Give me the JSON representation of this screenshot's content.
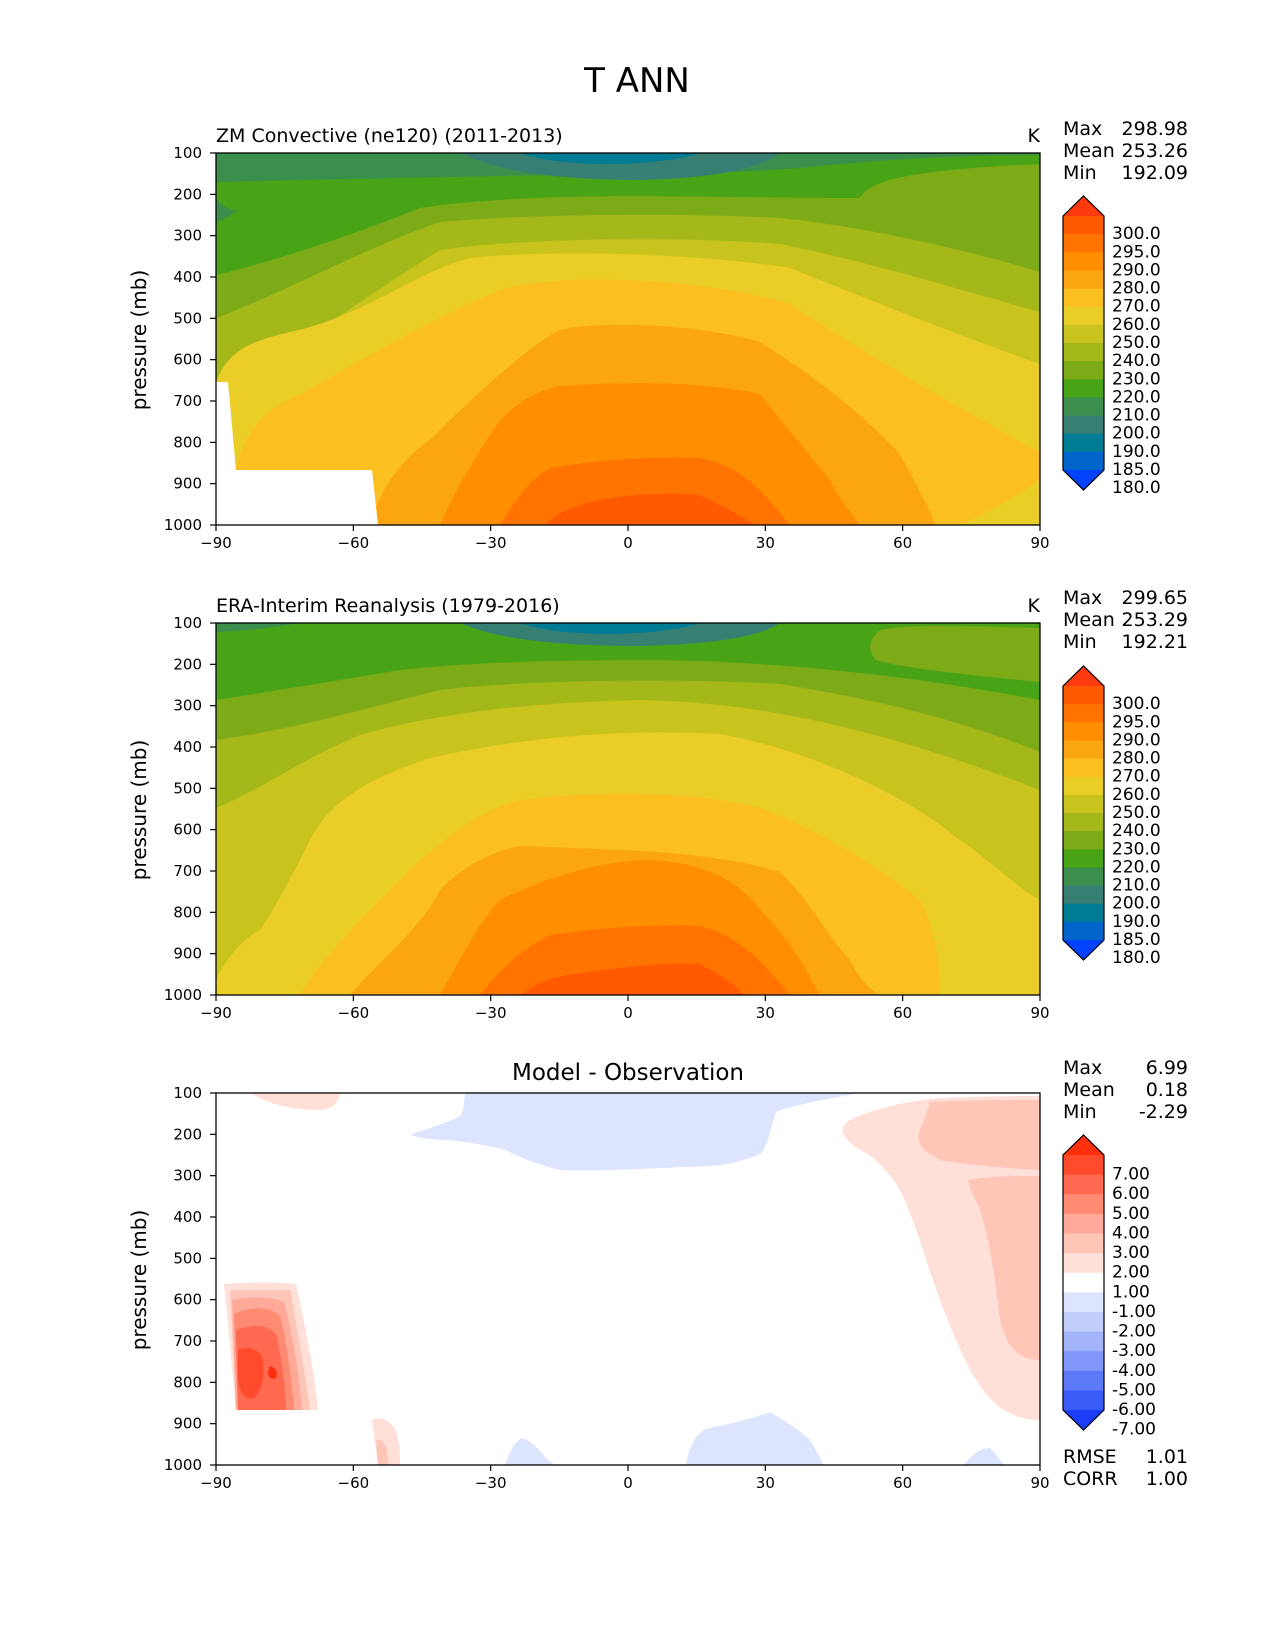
{
  "figure": {
    "suptitle": "T ANN"
  },
  "chart_data": [
    {
      "type": "heatmap",
      "title": "ZM Convective (ne120) (2011-2013)",
      "units": "K",
      "ylabel": "pressure (mb)",
      "xlim": [
        -90,
        90
      ],
      "ylim": [
        1000,
        100
      ],
      "xticks": [
        "−90",
        "−60",
        "−30",
        "0",
        "30",
        "60",
        "90"
      ],
      "yticks": [
        "100",
        "200",
        "300",
        "400",
        "500",
        "600",
        "700",
        "800",
        "900",
        "1000"
      ],
      "stats": {
        "max_label": "Max",
        "max": "298.98",
        "mean_label": "Mean",
        "mean": "253.26",
        "min_label": "Min",
        "min": "192.09"
      },
      "colorbar": {
        "labels": [
          "300.0",
          "295.0",
          "290.0",
          "280.0",
          "270.0",
          "260.0",
          "250.0",
          "240.0",
          "230.0",
          "220.0",
          "210.0",
          "200.0",
          "190.0",
          "185.0",
          "180.0"
        ],
        "colors": [
          "#ff3a0e",
          "#ff5a00",
          "#ff7300",
          "#ff8e00",
          "#fba611",
          "#fbbf1f",
          "#ebcd27",
          "#c8c41d",
          "#a4b81a",
          "#7dab17",
          "#49a316",
          "#3c8e4c",
          "#377f73",
          "#007d94",
          "#0066cc",
          "#0042ff"
        ]
      }
    },
    {
      "type": "heatmap",
      "title": "ERA-Interim Reanalysis (1979-2016)",
      "units": "K",
      "ylabel": "pressure (mb)",
      "xlim": [
        -90,
        90
      ],
      "ylim": [
        1000,
        100
      ],
      "xticks": [
        "−90",
        "−60",
        "−30",
        "0",
        "30",
        "60",
        "90"
      ],
      "yticks": [
        "100",
        "200",
        "300",
        "400",
        "500",
        "600",
        "700",
        "800",
        "900",
        "1000"
      ],
      "stats": {
        "max_label": "Max",
        "max": "299.65",
        "mean_label": "Mean",
        "mean": "253.29",
        "min_label": "Min",
        "min": "192.21"
      },
      "colorbar": {
        "labels": [
          "300.0",
          "295.0",
          "290.0",
          "280.0",
          "270.0",
          "260.0",
          "250.0",
          "240.0",
          "230.0",
          "220.0",
          "210.0",
          "200.0",
          "190.0",
          "185.0",
          "180.0"
        ],
        "colors": [
          "#ff3a0e",
          "#ff5a00",
          "#ff7300",
          "#ff8e00",
          "#fba611",
          "#fbbf1f",
          "#ebcd27",
          "#c8c41d",
          "#a4b81a",
          "#7dab17",
          "#49a316",
          "#3c8e4c",
          "#377f73",
          "#007d94",
          "#0066cc",
          "#0042ff"
        ]
      }
    },
    {
      "type": "heatmap",
      "title": "Model - Observation",
      "ylabel": "pressure (mb)",
      "xlim": [
        -90,
        90
      ],
      "ylim": [
        1000,
        100
      ],
      "xticks": [
        "−90",
        "−60",
        "−30",
        "0",
        "30",
        "60",
        "90"
      ],
      "yticks": [
        "100",
        "200",
        "300",
        "400",
        "500",
        "600",
        "700",
        "800",
        "900",
        "1000"
      ],
      "stats": {
        "max_label": "Max",
        "max": "6.99",
        "mean_label": "Mean",
        "mean": "0.18",
        "min_label": "Min",
        "min": "-2.29"
      },
      "bottom_stats": {
        "rmse_label": "RMSE",
        "rmse": "1.01",
        "corr_label": "CORR",
        "corr": "1.00"
      },
      "colorbar": {
        "labels": [
          "7.00",
          "6.00",
          "5.00",
          "4.00",
          "3.00",
          "2.00",
          "1.00",
          "-1.00",
          "-2.00",
          "-3.00",
          "-4.00",
          "-5.00",
          "-6.00",
          "-7.00"
        ],
        "colors": [
          "#ff2e0c",
          "#ff4a2c",
          "#ff6a50",
          "#ff8a72",
          "#ffaa98",
          "#ffc6b8",
          "#ffe0d8",
          "#ffffff",
          "#dde4fd",
          "#c2cdfc",
          "#a4b4fb",
          "#8097f9",
          "#5c7af8",
          "#3a5cf8",
          "#1a3ef8"
        ]
      }
    }
  ]
}
